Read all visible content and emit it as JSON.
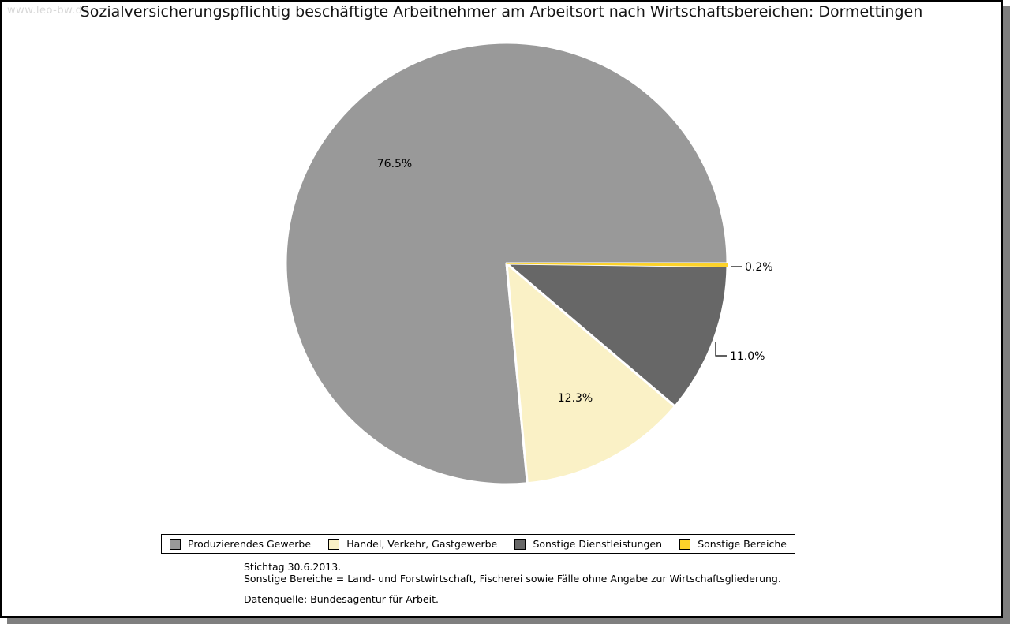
{
  "watermark": "www.leo-bw.de",
  "header": {
    "title": "Sozialversicherungspflichtig beschäftigte Arbeitnehmer am Arbeitsort nach Wirtschaftsbereichen: Dormettingen"
  },
  "chart_data": {
    "type": "pie",
    "title": "Sozialversicherungspflichtig beschäftigte Arbeitnehmer am Arbeitsort nach Wirtschaftsbereichen: Dormettingen",
    "unit": "%",
    "start_angle_deg": 0,
    "direction": "clockwise",
    "legend_position": "bottom",
    "slices": [
      {
        "name": "Produzierendes Gewerbe",
        "value": 76.5,
        "label": "76.5%",
        "color": "#999999"
      },
      {
        "name": "Handel, Verkehr, Gastgewerbe",
        "value": 12.3,
        "label": "12.3%",
        "color": "#FAF1C6"
      },
      {
        "name": "Sonstige Dienstleistungen",
        "value": 11.0,
        "label": "11.0%",
        "color": "#676767"
      },
      {
        "name": "Sonstige Bereiche",
        "value": 0.2,
        "label": "0.2%",
        "color": "#FCD22A"
      }
    ],
    "clockwise_order_from_east": [
      "Sonstige Bereiche",
      "Sonstige Dienstleistungen",
      "Handel, Verkehr, Gastgewerbe",
      "Produzierendes Gewerbe"
    ]
  },
  "footnotes": {
    "line1": "Stichtag 30.6.2013.",
    "line2": "Sonstige Bereiche = Land- und Forstwirtschaft, Fischerei sowie Fälle ohne Angabe zur Wirtschaftsgliederung.",
    "source": "Datenquelle: Bundesagentur für Arbeit."
  }
}
